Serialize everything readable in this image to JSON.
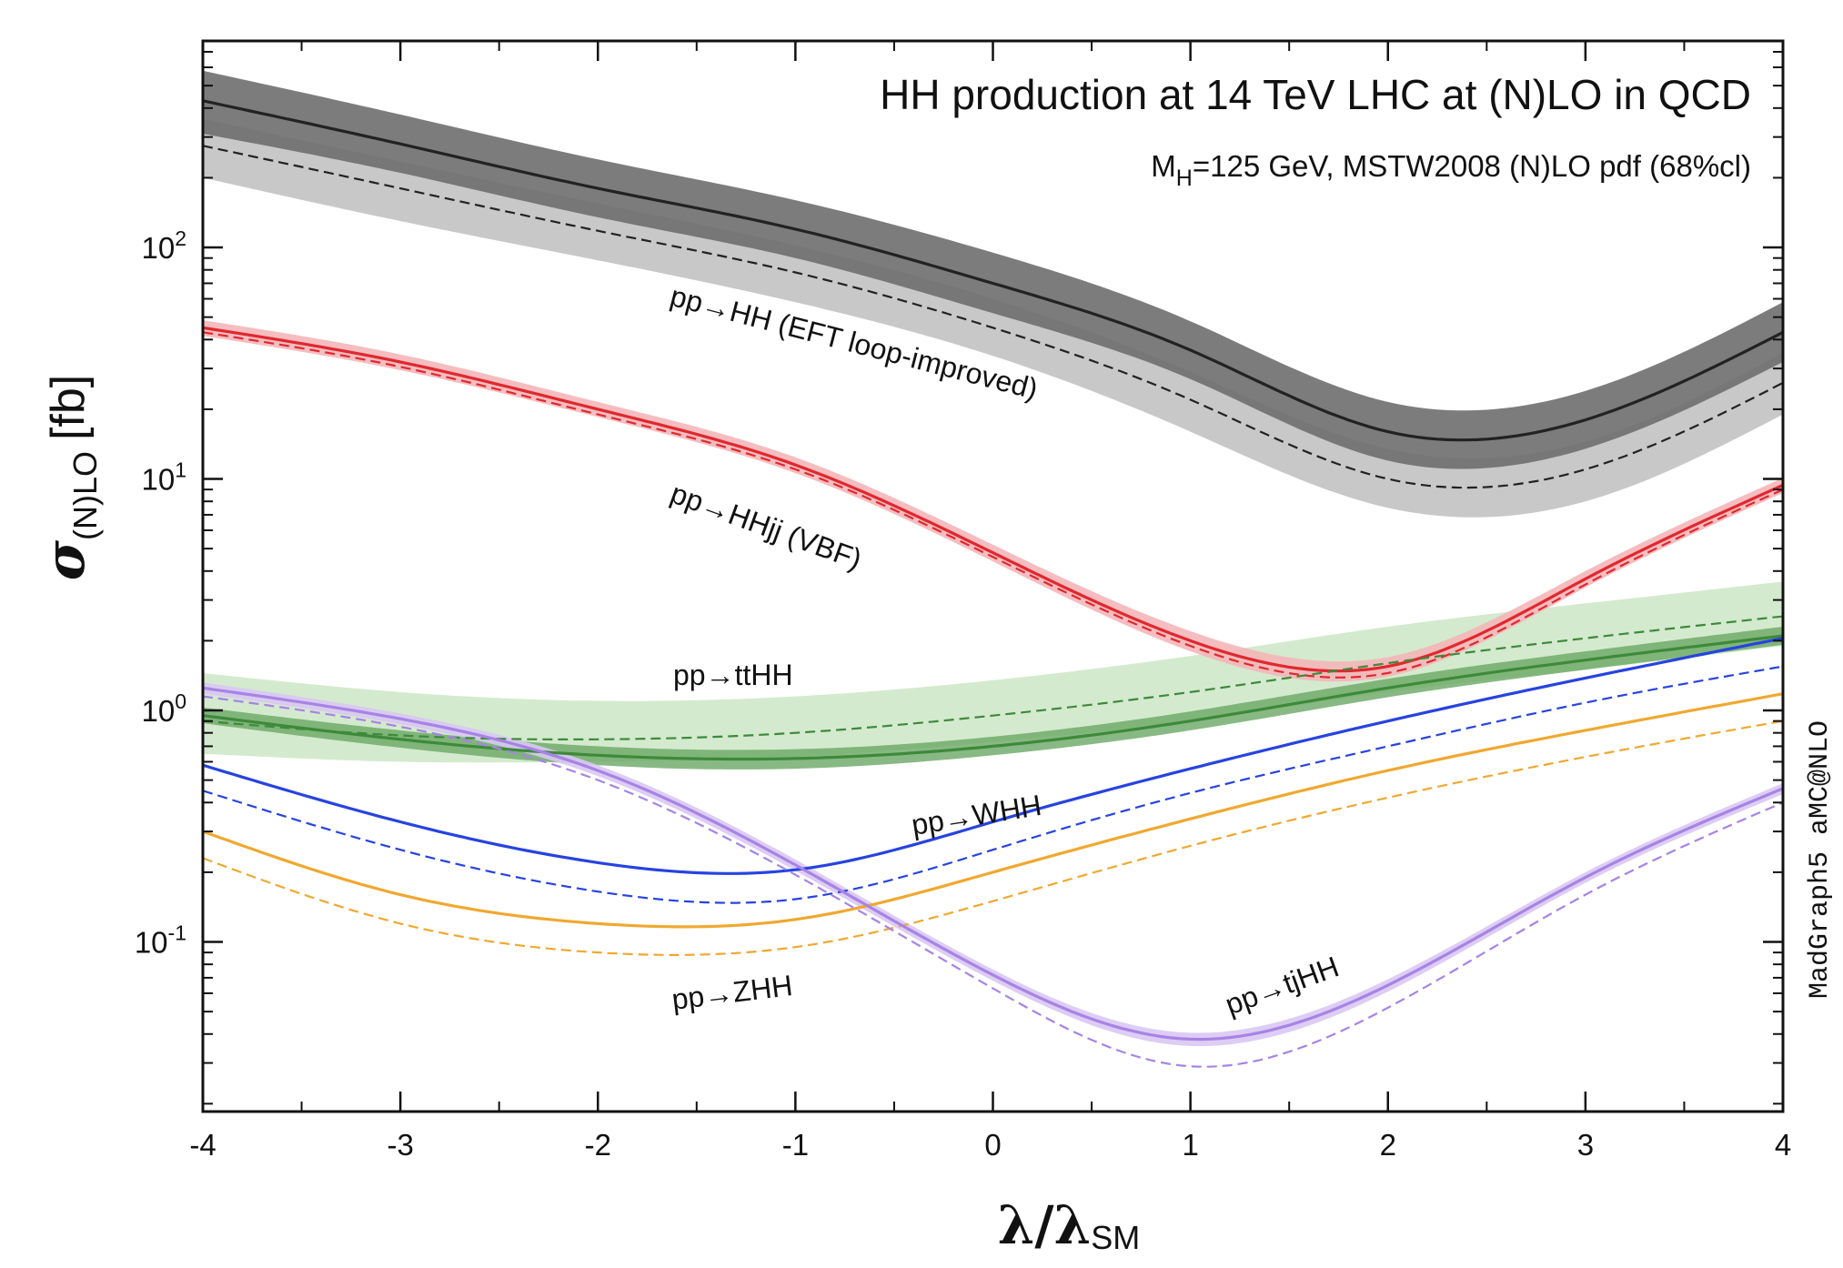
{
  "chart_data": {
    "type": "line",
    "title": "HH production at 14 TeV LHC at (N)LO in QCD",
    "subtitle": {
      "prefix": "M",
      "sub": "H",
      "rest": "=125 GeV, MSTW2008 (N)LO pdf (68%cl)"
    },
    "xlabel": {
      "main": "λ/λ",
      "sub": "SM"
    },
    "ylabel": {
      "main": "σ",
      "sub": "(N)LO",
      "unit": "[fb]"
    },
    "yscale": "log",
    "xlim": [
      -4,
      4
    ],
    "ylim": [
      0.0185,
      780
    ],
    "x_ticks": [
      "-4",
      "-3",
      "-2",
      "-1",
      "0",
      "1",
      "2",
      "3",
      "4"
    ],
    "y_ticks": [
      {
        "base": "10",
        "exp": "-1",
        "value": 0.1
      },
      {
        "base": "10",
        "exp": "0",
        "value": 1
      },
      {
        "base": "10",
        "exp": "1",
        "value": 10
      },
      {
        "base": "10",
        "exp": "2",
        "value": 100
      }
    ],
    "watermark": "MadGraph5 aMC@NLO",
    "x": [
      -4,
      -3,
      -2,
      -1,
      0,
      1,
      2,
      3,
      4
    ],
    "series": [
      {
        "label": "pp→HH (EFT loop-improved)",
        "color": "#222222",
        "band_colors": [
          "#c8c8c8",
          "#6e6e6e"
        ],
        "nlo": [
          430,
          280,
          180,
          120,
          70,
          36,
          16,
          18,
          43
        ],
        "lo": [
          275,
          180,
          118,
          78,
          45,
          22,
          10,
          11,
          26
        ],
        "nlo_band": [
          [
            310,
            580
          ],
          [
            210,
            375
          ],
          [
            135,
            240
          ],
          [
            90,
            160
          ],
          [
            52,
            95
          ],
          [
            27,
            48
          ],
          [
            12,
            21.5
          ],
          [
            13.5,
            24
          ],
          [
            32,
            58
          ]
        ],
        "lo_band": [
          [
            200,
            360
          ],
          [
            130,
            235
          ],
          [
            88,
            155
          ],
          [
            58,
            102
          ],
          [
            34,
            60
          ],
          [
            16,
            29
          ],
          [
            7.5,
            13.5
          ],
          [
            8,
            14.5
          ],
          [
            19,
            35
          ]
        ]
      },
      {
        "label": "pp→HHjj (VBF)",
        "color": "#e0282e",
        "band_colors": [
          "#f4b6b9"
        ],
        "nlo": [
          45,
          32,
          20,
          11.5,
          4.8,
          2.0,
          1.55,
          3.7,
          9.4
        ],
        "lo": [
          43,
          30.5,
          19,
          11,
          4.6,
          1.9,
          1.45,
          3.5,
          9.0
        ],
        "nlo_band": [
          [
            41.5,
            48.5
          ],
          [
            29.5,
            34.5
          ],
          [
            18.5,
            21.5
          ],
          [
            10.6,
            12.4
          ],
          [
            4.4,
            5.2
          ],
          [
            1.8,
            2.2
          ],
          [
            1.4,
            1.7
          ],
          [
            3.4,
            4.0
          ],
          [
            8.7,
            10.1
          ]
        ]
      },
      {
        "label": "pp→ttHH",
        "color": "#3d8a3a",
        "band_colors": [
          "#cce6c6",
          "#6aa865"
        ],
        "nlo": [
          0.95,
          0.75,
          0.64,
          0.62,
          0.7,
          0.9,
          1.25,
          1.65,
          2.1
        ],
        "lo": [
          0.9,
          0.78,
          0.75,
          0.8,
          0.95,
          1.2,
          1.6,
          2.05,
          2.55
        ],
        "nlo_band": [
          [
            0.88,
            1.03
          ],
          [
            0.69,
            0.82
          ],
          [
            0.58,
            0.7
          ],
          [
            0.56,
            0.68
          ],
          [
            0.64,
            0.77
          ],
          [
            0.82,
            0.99
          ],
          [
            1.14,
            1.37
          ],
          [
            1.5,
            1.8
          ],
          [
            1.92,
            2.3
          ]
        ],
        "lo_band": [
          [
            0.65,
            1.45
          ],
          [
            0.6,
            1.2
          ],
          [
            0.6,
            1.1
          ],
          [
            0.63,
            1.15
          ],
          [
            0.73,
            1.35
          ],
          [
            0.9,
            1.72
          ],
          [
            1.2,
            2.3
          ],
          [
            1.5,
            2.9
          ],
          [
            1.9,
            3.6
          ]
        ]
      },
      {
        "label": "pp→WHH",
        "color": "#2743e0",
        "band_colors": [],
        "nlo": [
          0.58,
          0.33,
          0.22,
          0.205,
          0.33,
          0.56,
          0.9,
          1.38,
          2.05
        ],
        "lo": [
          0.45,
          0.25,
          0.165,
          0.153,
          0.25,
          0.44,
          0.7,
          1.08,
          1.55
        ]
      },
      {
        "label": "pp→ZHH",
        "color": "#f0a830",
        "band_colors": [],
        "nlo": [
          0.3,
          0.16,
          0.12,
          0.125,
          0.2,
          0.34,
          0.55,
          0.82,
          1.18
        ],
        "lo": [
          0.23,
          0.12,
          0.09,
          0.095,
          0.15,
          0.26,
          0.42,
          0.63,
          0.9
        ]
      },
      {
        "label": "pp→tjHH",
        "color": "#a783e6",
        "band_colors": [
          "#d9c8f3"
        ],
        "nlo": [
          1.25,
          0.92,
          0.55,
          0.215,
          0.072,
          0.038,
          0.065,
          0.19,
          0.46
        ],
        "lo": [
          1.15,
          0.85,
          0.5,
          0.195,
          0.063,
          0.029,
          0.052,
          0.16,
          0.4
        ],
        "nlo_band": [
          [
            1.18,
            1.32
          ],
          [
            0.87,
            0.97
          ],
          [
            0.52,
            0.58
          ],
          [
            0.203,
            0.227
          ],
          [
            0.068,
            0.076
          ],
          [
            0.0355,
            0.0405
          ],
          [
            0.061,
            0.069
          ],
          [
            0.18,
            0.2
          ],
          [
            0.435,
            0.485
          ]
        ]
      }
    ]
  }
}
